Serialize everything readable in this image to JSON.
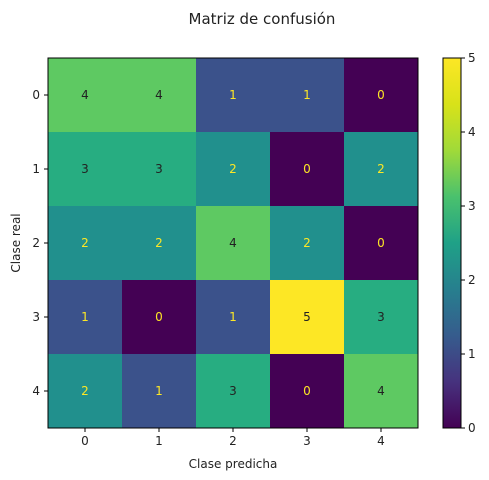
{
  "chart_data": {
    "type": "heatmap",
    "title": "Matriz de confusión",
    "xlabel": "Clase predicha",
    "ylabel": "Clase real",
    "x_categories": [
      "0",
      "1",
      "2",
      "3",
      "4"
    ],
    "y_categories": [
      "0",
      "1",
      "2",
      "3",
      "4"
    ],
    "values": [
      [
        4,
        4,
        1,
        1,
        0
      ],
      [
        3,
        3,
        2,
        0,
        2
      ],
      [
        2,
        2,
        4,
        2,
        0
      ],
      [
        1,
        0,
        1,
        5,
        3
      ],
      [
        2,
        1,
        3,
        0,
        4
      ]
    ],
    "colormap": "viridis",
    "vmin": 0,
    "vmax": 5,
    "colorbar_ticks": [
      "0",
      "1",
      "2",
      "3",
      "4",
      "5"
    ],
    "grid": false,
    "colors": {
      "v0": "#440154",
      "v1": "#3b528b",
      "v2": "#21908d",
      "v3": "#27ad81",
      "v4": "#5ec962",
      "v5": "#fde725",
      "label_on_dark": "#fde725",
      "label_on_light": "#222222"
    }
  }
}
